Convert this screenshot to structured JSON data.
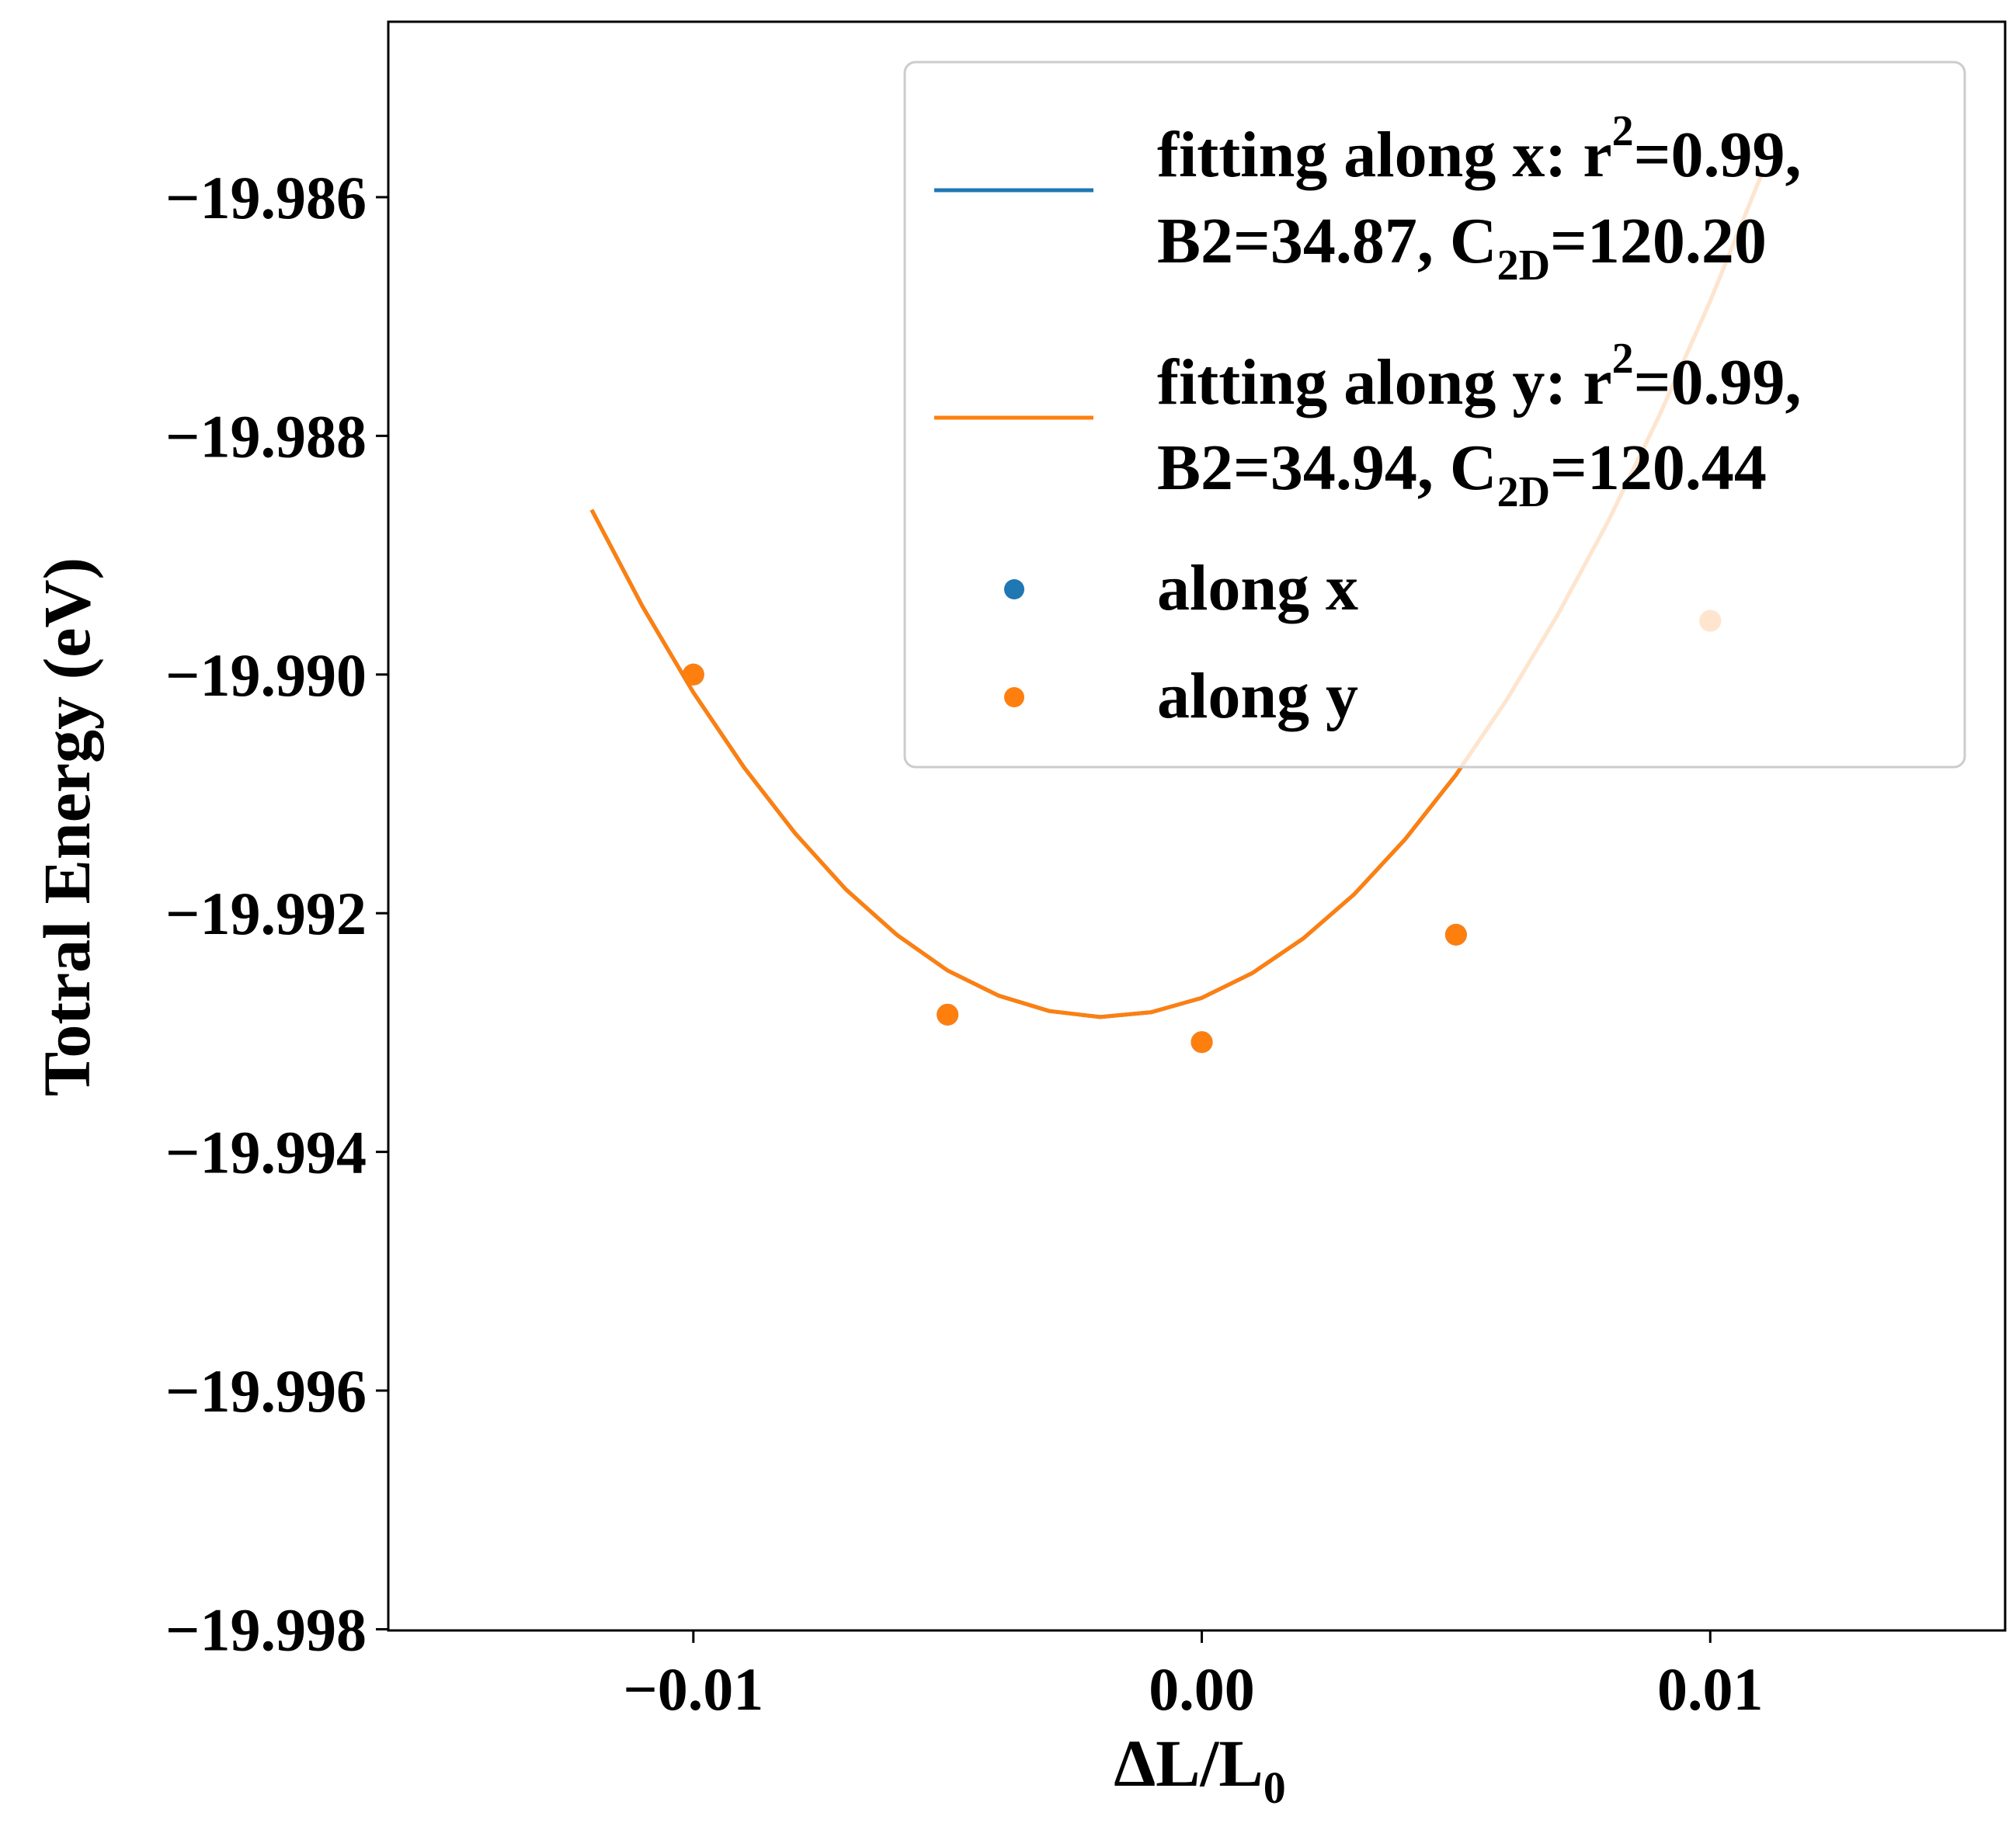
{
  "chart_data": {
    "type": "line",
    "xlabel": "ΔL/L",
    "xlabel_subscript": "0",
    "ylabel": "Totral Energy (eV)",
    "xlim": [
      -0.016,
      0.0158
    ],
    "ylim": [
      -19.99801,
      -19.98453
    ],
    "xticks": [
      -0.01,
      0.0,
      0.01
    ],
    "xtick_labels": [
      "−0.01",
      "0.00",
      "0.01"
    ],
    "yticks": [
      -19.986,
      -19.988,
      -19.99,
      -19.992,
      -19.994,
      -19.996,
      -19.998
    ],
    "ytick_labels": [
      "−19.986",
      "−19.988",
      "−19.990",
      "−19.992",
      "−19.994",
      "−19.996",
      "−19.998"
    ],
    "grid": false,
    "legend_position": "top-right",
    "colors": {
      "x": "#1f77b4",
      "y": "#ff7f0e"
    },
    "fit_x": [
      -0.012,
      -0.011,
      -0.01,
      -0.009,
      -0.008,
      -0.007,
      -0.006,
      -0.005,
      -0.004,
      -0.003,
      -0.002,
      -0.001,
      0.0,
      0.001,
      0.002,
      0.003,
      0.004,
      0.005,
      0.006,
      0.007,
      0.008,
      0.009,
      0.01,
      0.011
    ],
    "series": [
      {
        "kind": "fit",
        "color_key": "x",
        "legend_line1": "fitting along x: r",
        "legend_line1_sup": "2",
        "legend_line1_end": "=0.99,",
        "legend_line2_a": "B2=34.87, C",
        "legend_line2_sub": "2D",
        "legend_line2_b": "=120.20",
        "y": [
          -19.98862,
          -19.98943,
          -19.99015,
          -19.99078,
          -19.99133,
          -19.9918,
          -19.99218,
          -19.99248,
          -19.99269,
          -19.99282,
          -19.99287,
          -19.99283,
          -19.99271,
          -19.9925,
          -19.99221,
          -19.99184,
          -19.99138,
          -19.99084,
          -19.99021,
          -19.9895,
          -19.98871,
          -19.98783,
          -19.98687,
          -19.98582
        ]
      },
      {
        "kind": "fit",
        "color_key": "y",
        "legend_line1": "fitting along y: r",
        "legend_line1_sup": "2",
        "legend_line1_end": "=0.99,",
        "legend_line2_a": "B2=34.94, C",
        "legend_line2_sub": "2D",
        "legend_line2_b": "=120.44",
        "y": [
          -19.98862,
          -19.98943,
          -19.99015,
          -19.99078,
          -19.99133,
          -19.9918,
          -19.99218,
          -19.99248,
          -19.99269,
          -19.99282,
          -19.99287,
          -19.99283,
          -19.99271,
          -19.9925,
          -19.99221,
          -19.99184,
          -19.99138,
          -19.99084,
          -19.99021,
          -19.9895,
          -19.98871,
          -19.98783,
          -19.98687,
          -19.98582
        ]
      },
      {
        "kind": "points",
        "color_key": "x",
        "name": "along x",
        "x": [
          -0.01,
          -0.005,
          0.0,
          0.005,
          0.01
        ],
        "y": [
          -19.99,
          -19.99285,
          -19.99308,
          -19.99218,
          -19.98955
        ]
      },
      {
        "kind": "points",
        "color_key": "y",
        "name": "along y",
        "x": [
          -0.01,
          -0.005,
          0.0,
          0.005,
          0.01
        ],
        "y": [
          -19.99,
          -19.99285,
          -19.99308,
          -19.99218,
          -19.98955
        ]
      }
    ]
  }
}
